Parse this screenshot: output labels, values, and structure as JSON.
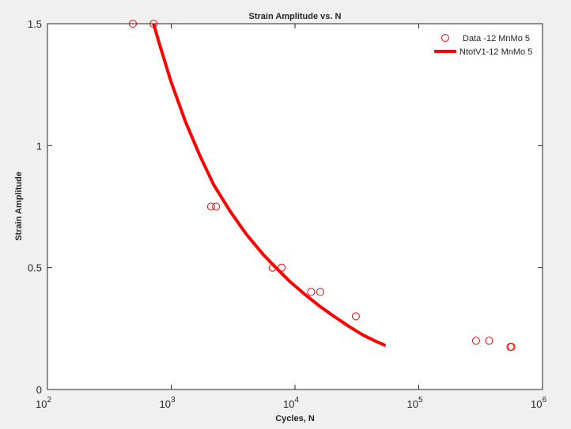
{
  "chart_data": {
    "type": "scatter",
    "title": "Strain Amplitude vs. N",
    "xlabel": "Cycles, N",
    "ylabel": "Strain Amplitude",
    "xscale": "log",
    "xlim": [
      100,
      1000000
    ],
    "ylim": [
      0,
      1.5
    ],
    "x_ticks": [
      {
        "base": "10",
        "exp": "2"
      },
      {
        "base": "10",
        "exp": "3"
      },
      {
        "base": "10",
        "exp": "4"
      },
      {
        "base": "10",
        "exp": "5"
      },
      {
        "base": "10",
        "exp": "6"
      }
    ],
    "y_ticks": [
      "0",
      "0.5",
      "1",
      "1.5"
    ],
    "grid": false,
    "legend_position": "top-right",
    "series": [
      {
        "name": "Data -12 MnMo 5",
        "kind": "markers",
        "marker": "circle",
        "color": "#ff0000",
        "points": [
          [
            490,
            1.5
          ],
          [
            720,
            1.5
          ],
          [
            2100,
            0.75
          ],
          [
            2300,
            0.75
          ],
          [
            6600,
            0.5
          ],
          [
            7800,
            0.5
          ],
          [
            13500,
            0.4
          ],
          [
            16000,
            0.4
          ],
          [
            31000,
            0.3
          ],
          [
            290000,
            0.2
          ],
          [
            370000,
            0.2
          ],
          [
            550000,
            0.175
          ],
          [
            560000,
            0.175
          ]
        ]
      },
      {
        "name": "NtotV1-12 MnMo 5",
        "kind": "line",
        "color": "#ff0000",
        "points": [
          [
            720,
            1.5
          ],
          [
            800,
            1.42
          ],
          [
            1000,
            1.26
          ],
          [
            1300,
            1.1
          ],
          [
            1700,
            0.96
          ],
          [
            2200,
            0.84
          ],
          [
            3000,
            0.73
          ],
          [
            4000,
            0.64
          ],
          [
            5500,
            0.555
          ],
          [
            7000,
            0.5
          ],
          [
            9000,
            0.445
          ],
          [
            12000,
            0.39
          ],
          [
            16000,
            0.34
          ],
          [
            20000,
            0.305
          ],
          [
            27000,
            0.26
          ],
          [
            35000,
            0.225
          ],
          [
            44000,
            0.2
          ],
          [
            54000,
            0.18
          ]
        ]
      }
    ]
  }
}
